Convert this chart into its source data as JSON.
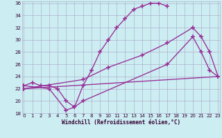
{
  "xlabel": "Windchill (Refroidissement éolien,°C)",
  "bg_color": "#cceef2",
  "grid_color": "#b0b0cc",
  "line_color": "#993399",
  "xmin": 0,
  "xmax": 23,
  "ymin": 18,
  "ymax": 36,
  "line1_x": [
    0,
    1,
    2,
    3,
    4,
    5,
    6,
    7,
    8,
    9,
    10,
    11,
    12,
    13,
    14,
    15,
    16,
    17
  ],
  "line1_y": [
    22.5,
    23.0,
    22.5,
    22.5,
    22.0,
    20.0,
    19.0,
    22.5,
    25.0,
    28.0,
    30.0,
    32.0,
    33.5,
    35.0,
    35.5,
    36.0,
    36.0,
    35.5
  ],
  "line2_x": [
    0,
    3,
    5,
    6,
    7,
    17,
    20,
    21,
    22,
    23
  ],
  "line2_y": [
    22.5,
    22.0,
    18.5,
    19.0,
    20.0,
    26.0,
    30.5,
    28.0,
    25.0,
    24.0
  ],
  "line3_x": [
    0,
    7,
    10,
    14,
    17,
    20,
    21,
    22,
    23
  ],
  "line3_y": [
    22.0,
    23.5,
    25.5,
    27.5,
    29.5,
    32.0,
    30.5,
    28.0,
    24.0
  ],
  "line4_x": [
    0,
    23
  ],
  "line4_y": [
    22.0,
    24.0
  ],
  "yticks": [
    18,
    20,
    22,
    24,
    26,
    28,
    30,
    32,
    34,
    36
  ],
  "xticks": [
    0,
    1,
    2,
    3,
    4,
    5,
    6,
    7,
    8,
    9,
    10,
    11,
    12,
    13,
    14,
    15,
    16,
    17,
    18,
    19,
    20,
    21,
    22,
    23
  ]
}
